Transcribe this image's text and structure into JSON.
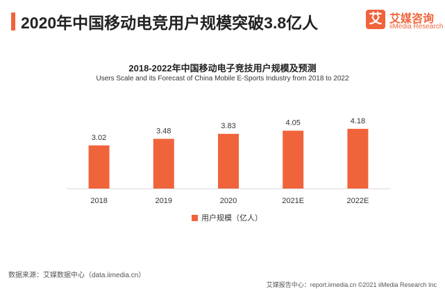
{
  "header": {
    "headline": "2020年中国移动电竞用户规模突破3.8亿人"
  },
  "logo": {
    "mark": "艾",
    "name_cn": "艾媒咨询",
    "name_en": "iiMedia Research"
  },
  "colors": {
    "accent": "#f0643c",
    "bar": "#f0643c"
  },
  "chart_data": {
    "type": "bar",
    "title": "2018-2022年中国移动电子竞技用户规模及预测",
    "subtitle": "Users Scale and its Forecast of China  Mobile E-Sports Industry from 2018 to 2022",
    "categories": [
      "2018",
      "2019",
      "2020",
      "2021E",
      "2022E"
    ],
    "series": [
      {
        "name": "用户规模（亿人）",
        "values": [
          3.02,
          3.48,
          3.83,
          4.05,
          4.18
        ]
      }
    ],
    "ylim": [
      0,
      5.0
    ],
    "grid": false,
    "legend_position": "bottom-center"
  },
  "source": "数据来源：艾媒数据中心（data.iimedia.cn）",
  "footer": "艾媒报告中心：report.iimedia.cn ©2021  iiMedia Research  Inc"
}
